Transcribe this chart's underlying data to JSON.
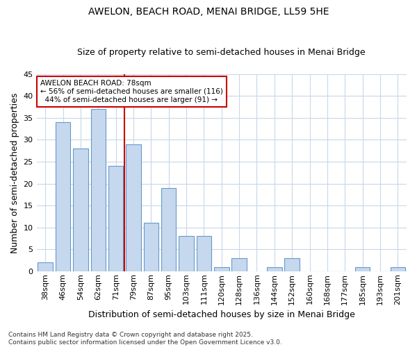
{
  "title1": "AWELON, BEACH ROAD, MENAI BRIDGE, LL59 5HE",
  "title2": "Size of property relative to semi-detached houses in Menai Bridge",
  "xlabel": "Distribution of semi-detached houses by size in Menai Bridge",
  "ylabel": "Number of semi-detached properties",
  "categories": [
    "38sqm",
    "46sqm",
    "54sqm",
    "62sqm",
    "71sqm",
    "79sqm",
    "87sqm",
    "95sqm",
    "103sqm",
    "111sqm",
    "120sqm",
    "128sqm",
    "136sqm",
    "144sqm",
    "152sqm",
    "160sqm",
    "168sqm",
    "177sqm",
    "185sqm",
    "193sqm",
    "201sqm"
  ],
  "values": [
    2,
    34,
    28,
    37,
    24,
    29,
    11,
    19,
    8,
    8,
    1,
    3,
    0,
    1,
    3,
    0,
    0,
    0,
    1,
    0,
    1
  ],
  "bar_color": "#c5d8ee",
  "bar_edge_color": "#6699cc",
  "reference_line_index": 5,
  "annotation_line1": "AWELON BEACH ROAD: 78sqm",
  "annotation_line2": "← 56% of semi-detached houses are smaller (116)",
  "annotation_line3": "  44% of semi-detached houses are larger (91) →",
  "annotation_box_color": "#ffffff",
  "annotation_box_edge": "#cc0000",
  "reference_line_color": "#cc0000",
  "footnote": "Contains HM Land Registry data © Crown copyright and database right 2025.\nContains public sector information licensed under the Open Government Licence v3.0.",
  "ylim": [
    0,
    45
  ],
  "background_color": "#ffffff",
  "plot_bg_color": "#ffffff",
  "grid_color": "#c8d8e8",
  "title_fontsize": 10,
  "subtitle_fontsize": 9,
  "tick_fontsize": 8,
  "ylabel_fontsize": 9,
  "xlabel_fontsize": 9,
  "footnote_fontsize": 6.5
}
